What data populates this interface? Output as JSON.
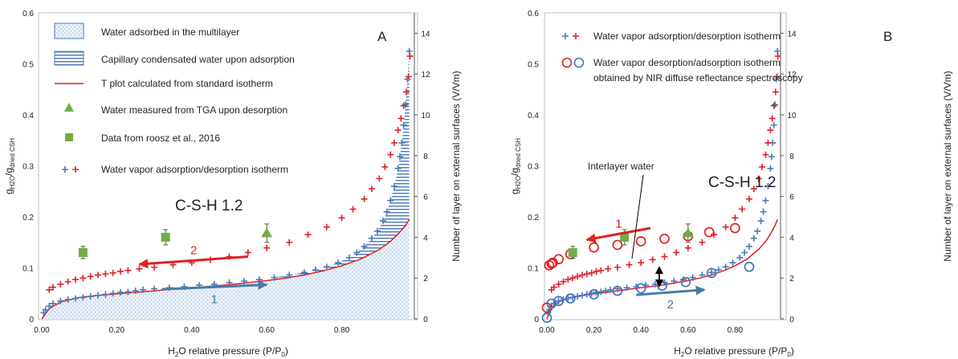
{
  "chart_data": [
    {
      "panel": "A",
      "type": "scatter",
      "title": "C-S-H 1.2",
      "xlabel_parts": [
        "H",
        "2",
        "O relative pressure (P/P",
        "0",
        ")"
      ],
      "ylabel_parts": [
        "g",
        "H2O",
        "/g",
        "dried CSH"
      ],
      "y2label": "Number of layer on external surfaces (V/Vm)",
      "xlim": [
        0,
        1
      ],
      "ylim": [
        0,
        0.6
      ],
      "y2lim": [
        0,
        15
      ],
      "xticks": [
        "0.00",
        "0.20",
        "0.40",
        "0.60",
        "0.80"
      ],
      "yticks": [
        "0",
        "0.1",
        "0.2",
        "0.3",
        "0.4",
        "0.5",
        "0.6"
      ],
      "y2ticks": [
        "0",
        "2",
        "4",
        "6",
        "8",
        "10",
        "12",
        "14"
      ],
      "legend": [
        "Water adsorbed in the multilayer",
        "Capillary condensated water upon adsorption",
        "T plot calculated from standard isotherm",
        "Water measured from TGA upon desorption",
        "Data from roosz et al., 2016",
        "Water vapor adsorption/desorption  isotherm"
      ],
      "arrows": [
        {
          "label": "2",
          "color": "#e02020",
          "from": [
            0.55,
            0.122
          ],
          "to": [
            0.26,
            0.107
          ]
        },
        {
          "label": "1",
          "color": "#4a7aa8",
          "from": [
            0.32,
            0.058
          ],
          "to": [
            0.6,
            0.067
          ]
        }
      ],
      "series": [
        {
          "kind": "adsorption",
          "marker": "plus",
          "color": "#4a78b8",
          "x": [
            0.005,
            0.01,
            0.02,
            0.03,
            0.05,
            0.07,
            0.09,
            0.11,
            0.13,
            0.15,
            0.17,
            0.19,
            0.21,
            0.23,
            0.25,
            0.27,
            0.3,
            0.34,
            0.38,
            0.42,
            0.46,
            0.5,
            0.54,
            0.58,
            0.62,
            0.66,
            0.7,
            0.73,
            0.76,
            0.79,
            0.82,
            0.84,
            0.86,
            0.88,
            0.895,
            0.91,
            0.92,
            0.93,
            0.94,
            0.95,
            0.955,
            0.96,
            0.965,
            0.97,
            0.975,
            0.98
          ],
          "y": [
            0.012,
            0.018,
            0.025,
            0.03,
            0.035,
            0.038,
            0.04,
            0.042,
            0.044,
            0.046,
            0.048,
            0.05,
            0.052,
            0.053,
            0.055,
            0.057,
            0.059,
            0.061,
            0.063,
            0.066,
            0.068,
            0.071,
            0.074,
            0.077,
            0.081,
            0.086,
            0.091,
            0.096,
            0.102,
            0.11,
            0.12,
            0.13,
            0.142,
            0.158,
            0.172,
            0.192,
            0.21,
            0.232,
            0.26,
            0.295,
            0.318,
            0.345,
            0.38,
            0.42,
            0.47,
            0.525
          ]
        },
        {
          "kind": "desorption",
          "marker": "plus",
          "color": "#e0202a",
          "x": [
            0.02,
            0.03,
            0.05,
            0.07,
            0.09,
            0.11,
            0.13,
            0.15,
            0.17,
            0.19,
            0.21,
            0.23,
            0.26,
            0.3,
            0.35,
            0.4,
            0.45,
            0.5,
            0.55,
            0.6,
            0.66,
            0.71,
            0.76,
            0.8,
            0.83,
            0.86,
            0.88,
            0.9,
            0.915,
            0.93,
            0.94,
            0.95,
            0.958,
            0.965,
            0.972,
            0.978,
            0.982
          ],
          "y": [
            0.057,
            0.062,
            0.068,
            0.073,
            0.077,
            0.08,
            0.083,
            0.086,
            0.088,
            0.09,
            0.093,
            0.095,
            0.098,
            0.101,
            0.106,
            0.11,
            0.116,
            0.122,
            0.13,
            0.139,
            0.15,
            0.165,
            0.18,
            0.198,
            0.215,
            0.235,
            0.255,
            0.275,
            0.298,
            0.322,
            0.345,
            0.37,
            0.393,
            0.418,
            0.445,
            0.475,
            0.515
          ]
        },
        {
          "kind": "tgа",
          "marker": "triangle",
          "color": "#70ad47",
          "x": [
            0.6
          ],
          "y": [
            0.168
          ],
          "err": [
            0.018
          ]
        },
        {
          "kind": "roosz",
          "marker": "square",
          "color": "#70ad47",
          "x": [
            0.11,
            0.33
          ],
          "y": [
            0.13,
            0.16
          ],
          "err": [
            0.012,
            0.015
          ]
        },
        {
          "kind": "tplot",
          "marker": "line",
          "color": "#e02020",
          "x": [
            0,
            0.02,
            0.05,
            0.1,
            0.15,
            0.2,
            0.25,
            0.3,
            0.35,
            0.4,
            0.45,
            0.5,
            0.55,
            0.6,
            0.65,
            0.7,
            0.75,
            0.8,
            0.85,
            0.9,
            0.93,
            0.95,
            0.97,
            0.98
          ],
          "y": [
            0,
            0.02,
            0.033,
            0.042,
            0.046,
            0.049,
            0.052,
            0.055,
            0.058,
            0.061,
            0.064,
            0.067,
            0.071,
            0.075,
            0.08,
            0.086,
            0.094,
            0.104,
            0.117,
            0.136,
            0.152,
            0.166,
            0.183,
            0.195
          ]
        }
      ]
    },
    {
      "panel": "B",
      "type": "scatter",
      "title": "C-S-H 1.2",
      "annotation": "Interlayer water",
      "xlabel_parts": [
        "H",
        "2",
        "O relative pressure (P/P",
        "0",
        ")"
      ],
      "ylabel_parts": [
        "g",
        "H2O",
        "/g",
        "dried CSH"
      ],
      "y2label": "Number of layer on external surfaces (V/Vm)",
      "xlim": [
        0,
        1
      ],
      "ylim": [
        0,
        0.6
      ],
      "y2lim": [
        0,
        15
      ],
      "xticks": [
        "0.00",
        "0.20",
        "0.40",
        "0.60",
        "0.80"
      ],
      "yticks": [
        "0",
        "0.1",
        "0.2",
        "0.3",
        "0.4",
        "0.5",
        "0.6"
      ],
      "y2ticks": [
        "0",
        "2",
        "4",
        "6",
        "8",
        "10",
        "12",
        "14"
      ],
      "legend": [
        "Water vapor adsorption/desorption  isotherm",
        "Water vapor desorption/adsorption  isotherm",
        "obtained by NIR diffuse reflectance spectroscopy"
      ],
      "arrows": [
        {
          "label": "1",
          "color": "#e02020",
          "from": [
            0.44,
            0.178
          ],
          "to": [
            0.17,
            0.155
          ]
        },
        {
          "label": "2",
          "color": "#4a7aa8",
          "from": [
            0.38,
            0.047
          ],
          "to": [
            0.67,
            0.057
          ]
        }
      ],
      "series": [
        {
          "kind": "adsorption",
          "marker": "plus",
          "color": "#4a78b8",
          "x": [
            0.005,
            0.01,
            0.02,
            0.03,
            0.05,
            0.07,
            0.09,
            0.11,
            0.13,
            0.15,
            0.17,
            0.19,
            0.21,
            0.23,
            0.25,
            0.27,
            0.3,
            0.34,
            0.38,
            0.42,
            0.46,
            0.5,
            0.54,
            0.58,
            0.62,
            0.66,
            0.7,
            0.73,
            0.76,
            0.79,
            0.82,
            0.84,
            0.86,
            0.88,
            0.895,
            0.91,
            0.92,
            0.93,
            0.94,
            0.95,
            0.955,
            0.96,
            0.965,
            0.97,
            0.975,
            0.98
          ],
          "y": [
            0.012,
            0.018,
            0.025,
            0.03,
            0.035,
            0.038,
            0.04,
            0.042,
            0.044,
            0.046,
            0.048,
            0.05,
            0.052,
            0.053,
            0.055,
            0.057,
            0.059,
            0.061,
            0.063,
            0.066,
            0.068,
            0.071,
            0.074,
            0.077,
            0.081,
            0.086,
            0.091,
            0.096,
            0.102,
            0.11,
            0.12,
            0.13,
            0.142,
            0.158,
            0.172,
            0.192,
            0.21,
            0.232,
            0.26,
            0.295,
            0.318,
            0.345,
            0.38,
            0.42,
            0.47,
            0.525
          ]
        },
        {
          "kind": "desorption",
          "marker": "plus",
          "color": "#e0202a",
          "x": [
            0.02,
            0.03,
            0.05,
            0.07,
            0.09,
            0.11,
            0.13,
            0.15,
            0.17,
            0.19,
            0.21,
            0.23,
            0.26,
            0.3,
            0.35,
            0.4,
            0.45,
            0.5,
            0.55,
            0.6,
            0.66,
            0.71,
            0.76,
            0.8,
            0.83,
            0.86,
            0.88,
            0.9,
            0.915,
            0.93,
            0.94,
            0.95,
            0.958,
            0.965,
            0.972,
            0.978,
            0.982
          ],
          "y": [
            0.057,
            0.062,
            0.068,
            0.073,
            0.077,
            0.08,
            0.083,
            0.086,
            0.088,
            0.09,
            0.093,
            0.095,
            0.098,
            0.101,
            0.106,
            0.11,
            0.116,
            0.122,
            0.13,
            0.139,
            0.15,
            0.165,
            0.18,
            0.198,
            0.215,
            0.235,
            0.255,
            0.275,
            0.298,
            0.322,
            0.345,
            0.37,
            0.393,
            0.418,
            0.445,
            0.475,
            0.515
          ]
        },
        {
          "kind": "nir-desorption",
          "marker": "circle",
          "color": "#e02020",
          "x": [
            0.0,
            0.01,
            0.02,
            0.025,
            0.05,
            0.1,
            0.2,
            0.3,
            0.4,
            0.5,
            0.6,
            0.69,
            0.8
          ],
          "y": [
            0.022,
            0.105,
            0.108,
            0.11,
            0.117,
            0.127,
            0.14,
            0.145,
            0.152,
            0.157,
            0.162,
            0.17,
            0.178
          ]
        },
        {
          "kind": "nir-adsorption",
          "marker": "circle",
          "color": "#4472c4",
          "x": [
            0.0,
            0.02,
            0.05,
            0.1,
            0.2,
            0.3,
            0.4,
            0.49,
            0.59,
            0.7,
            0.86
          ],
          "y": [
            0.002,
            0.03,
            0.035,
            0.04,
            0.048,
            0.055,
            0.06,
            0.065,
            0.072,
            0.09,
            0.102
          ]
        },
        {
          "kind": "tga",
          "marker": "triangle",
          "color": "#70ad47",
          "x": [
            0.6
          ],
          "y": [
            0.168
          ],
          "err": [
            0.018
          ]
        },
        {
          "kind": "roosz",
          "marker": "square",
          "color": "#70ad47",
          "x": [
            0.11,
            0.33
          ],
          "y": [
            0.13,
            0.16
          ],
          "err": [
            0.012,
            0.015
          ]
        },
        {
          "kind": "tplot",
          "marker": "line",
          "color": "#e02020",
          "x": [
            0,
            0.02,
            0.05,
            0.1,
            0.15,
            0.2,
            0.25,
            0.3,
            0.35,
            0.4,
            0.45,
            0.5,
            0.55,
            0.6,
            0.65,
            0.7,
            0.75,
            0.8,
            0.85,
            0.9,
            0.93,
            0.95,
            0.97,
            0.98
          ],
          "y": [
            0,
            0.02,
            0.033,
            0.042,
            0.046,
            0.049,
            0.052,
            0.055,
            0.058,
            0.061,
            0.064,
            0.067,
            0.071,
            0.075,
            0.08,
            0.086,
            0.094,
            0.104,
            0.117,
            0.136,
            0.152,
            0.166,
            0.183,
            0.195
          ]
        }
      ]
    }
  ]
}
